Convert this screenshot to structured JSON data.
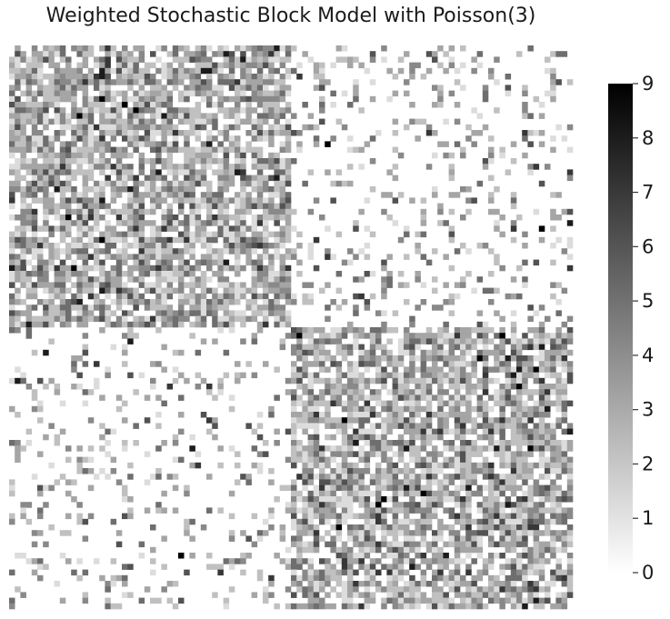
{
  "chart_data": {
    "type": "heatmap",
    "title": "Weighted Stochastic Block Model with Poisson(3)",
    "rows": 100,
    "cols": 100,
    "blocks": [
      {
        "rows": [
          0,
          50
        ],
        "cols": [
          0,
          50
        ],
        "pattern": "dense"
      },
      {
        "rows": [
          0,
          50
        ],
        "cols": [
          50,
          100
        ],
        "pattern": "sparse"
      },
      {
        "rows": [
          50,
          100
        ],
        "cols": [
          0,
          50
        ],
        "pattern": "sparse"
      },
      {
        "rows": [
          50,
          100
        ],
        "cols": [
          50,
          100
        ],
        "pattern": "dense"
      }
    ],
    "value_range": [
      0,
      9
    ],
    "colormap": "Greys",
    "colorbar": {
      "ticks": [
        "0",
        "1",
        "2",
        "3",
        "4",
        "5",
        "6",
        "7",
        "8",
        "9"
      ]
    },
    "axes_visible": false
  }
}
